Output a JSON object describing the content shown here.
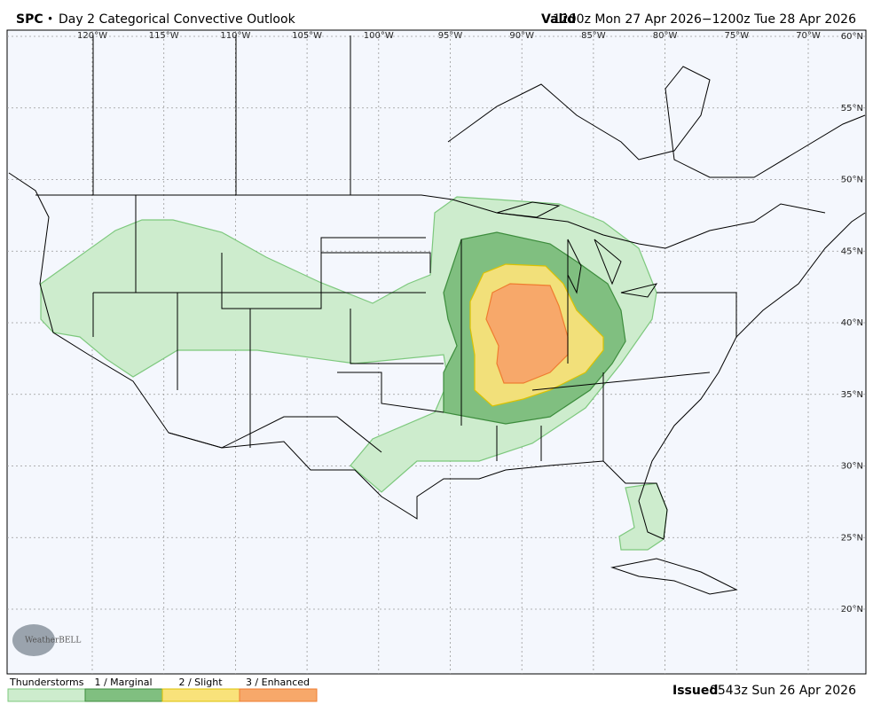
{
  "header": {
    "org": "SPC",
    "separator": "•",
    "product": "Day 2 Categorical Convective Outlook",
    "valid_label": "Valid",
    "valid_range": "1200z Mon 27 Apr 2026−1200z Tue 28 Apr 2026"
  },
  "map": {
    "longitude_labels": [
      "120°W",
      "115°W",
      "110°W",
      "105°W",
      "100°W",
      "95°W",
      "90°W",
      "85°W",
      "80°W",
      "75°W",
      "70°W"
    ],
    "latitude_labels": [
      "60°N",
      "55°N",
      "50°N",
      "45°N",
      "40°N",
      "35°N",
      "30°N",
      "25°N",
      "20°N"
    ],
    "logo": "WeatherBELL"
  },
  "legend": [
    "Thunderstorms",
    "1 / Marginal",
    "2 / Slight",
    "3 / Enhanced"
  ],
  "issued": {
    "label": "Issued",
    "time": "0543z Sun 26 Apr 2026"
  }
}
